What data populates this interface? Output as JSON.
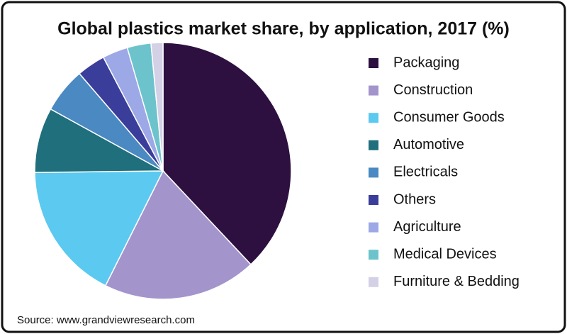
{
  "chart_data": {
    "type": "pie",
    "title": "Global plastics market share, by application, 2017 (%)",
    "source": "Source: www.grandviewresearch.com",
    "categories": [
      "Packaging",
      "Construction",
      "Consumer Goods",
      "Automotive",
      "Electricals",
      "Others",
      "Agriculture",
      "Medical Devices",
      "Furniture & Bedding"
    ],
    "values": [
      38,
      19.4,
      17.4,
      8.2,
      5.7,
      3.6,
      3.2,
      3.0,
      1.5
    ],
    "colors": [
      "#2d1040",
      "#a394cc",
      "#5bc9f0",
      "#1f6f7d",
      "#4a89c2",
      "#3a3e9a",
      "#9da8e6",
      "#6cc3cc",
      "#d4d0e6"
    ],
    "legend": "right"
  }
}
